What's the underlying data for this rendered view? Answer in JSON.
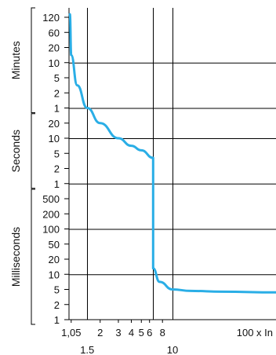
{
  "chart_data": {
    "type": "line",
    "title": "",
    "x_scale": "log",
    "y_scale": "log",
    "x_unit_label": "100 x In",
    "xlim": [
      1,
      100
    ],
    "x_ticks": [
      {
        "value": 1.05,
        "label": "1,05"
      },
      {
        "value": 2,
        "label": "2"
      },
      {
        "value": 3,
        "label": "3"
      },
      {
        "value": 4,
        "label": "4"
      },
      {
        "value": 5,
        "label": "5"
      },
      {
        "value": 6,
        "label": "6"
      },
      {
        "value": 8,
        "label": "8"
      }
    ],
    "x_lower_ticks": [
      {
        "value": 1.5,
        "label": "1.5"
      },
      {
        "value": 10,
        "label": "10"
      }
    ],
    "y_groups": [
      {
        "name": "Minutes",
        "ticks": [
          {
            "label": "120",
            "rank": 0
          },
          {
            "label": "60",
            "rank": 1
          },
          {
            "label": "20",
            "rank": 2
          },
          {
            "label": "10",
            "rank": 3
          },
          {
            "label": "5",
            "rank": 4
          },
          {
            "label": "2",
            "rank": 5
          },
          {
            "label": "1",
            "rank": 6
          }
        ]
      },
      {
        "name": "Seconds",
        "ticks": [
          {
            "label": "20",
            "rank": 7
          },
          {
            "label": "10",
            "rank": 8
          },
          {
            "label": "5",
            "rank": 9
          },
          {
            "label": "2",
            "rank": 10
          },
          {
            "label": "1",
            "rank": 11
          }
        ]
      },
      {
        "name": "Milliseconds",
        "ticks": [
          {
            "label": "500",
            "rank": 12
          },
          {
            "label": "200",
            "rank": 13
          },
          {
            "label": "100",
            "rank": 14
          },
          {
            "label": "50",
            "rank": 15
          },
          {
            "label": "20",
            "rank": 16
          },
          {
            "label": "10",
            "rank": 17
          },
          {
            "label": "5",
            "rank": 18
          },
          {
            "label": "2",
            "rank": 19
          },
          {
            "label": "1",
            "rank": 20
          }
        ]
      }
    ],
    "grid_lines_x": [
      1.5,
      6.5,
      10
    ],
    "grid_lines_y_rank": [
      3,
      6,
      8,
      11,
      14,
      17
    ],
    "grid": true,
    "series": [
      {
        "color": "#2aaee6",
        "points": [
          {
            "x": 1.02,
            "rank": -0.2
          },
          {
            "x": 1.05,
            "rank": 2.5
          },
          {
            "x": 1.2,
            "rank": 4.5
          },
          {
            "x": 1.5,
            "rank": 6.0
          },
          {
            "x": 2.0,
            "rank": 7.0
          },
          {
            "x": 3.0,
            "rank": 8.0
          },
          {
            "x": 4.0,
            "rank": 8.5
          },
          {
            "x": 5.0,
            "rank": 8.8
          },
          {
            "x": 6.5,
            "rank": 9.3
          },
          {
            "x": 6.5,
            "rank": 13.0
          },
          {
            "x": 6.5,
            "rank": 16.6
          },
          {
            "x": 7.5,
            "rank": 17.5
          },
          {
            "x": 10.0,
            "rank": 18.0
          },
          {
            "x": 15.0,
            "rank": 18.1
          },
          {
            "x": 30.0,
            "rank": 18.15
          },
          {
            "x": 100.0,
            "rank": 18.2
          }
        ]
      }
    ]
  }
}
